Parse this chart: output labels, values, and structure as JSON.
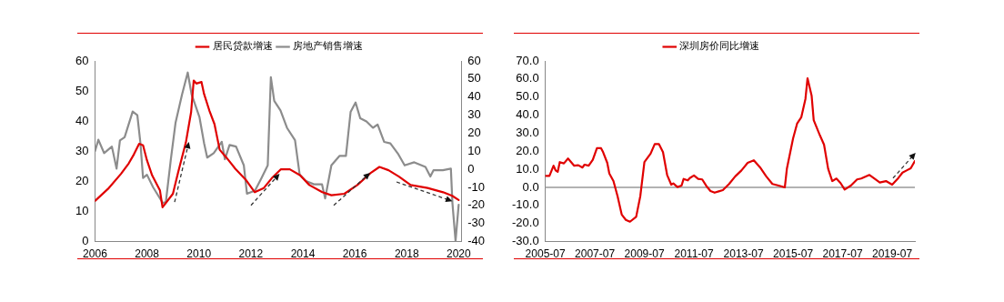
{
  "chart_data": [
    {
      "type": "line",
      "legend": "top",
      "grid": false,
      "marker": "none",
      "line_style": "solid",
      "xlim": [
        2006,
        2020.1
      ],
      "xticks": [
        2006,
        2008,
        2010,
        2012,
        2014,
        2016,
        2018,
        2020
      ],
      "ylim": [
        0,
        60
      ],
      "yticks": [
        0,
        10,
        20,
        30,
        40,
        50,
        60
      ],
      "y2lim": [
        -40,
        60
      ],
      "y2ticks": [
        -40,
        -30,
        -20,
        -10,
        0,
        10,
        20,
        30,
        40,
        50,
        60
      ],
      "series": [
        {
          "name": "居民贷款增速",
          "color": "#e00000",
          "x": [
            2006.0,
            2006.5,
            2007.0,
            2007.3,
            2007.5,
            2007.7,
            2007.85,
            2008.0,
            2008.2,
            2008.5,
            2008.6,
            2009.0,
            2009.2,
            2009.5,
            2009.7,
            2009.8,
            2009.9,
            2010.1,
            2010.2,
            2010.4,
            2010.6,
            2010.8,
            2011.05,
            2011.4,
            2011.8,
            2012.15,
            2012.5,
            2012.8,
            2013.15,
            2013.5,
            2013.9,
            2014.25,
            2014.75,
            2015.1,
            2015.6,
            2016.1,
            2016.6,
            2016.95,
            2017.3,
            2017.7,
            2018.15,
            2018.8,
            2019.4,
            2019.75,
            2020.0
          ],
          "values": [
            13.5,
            17.5,
            22.5,
            26,
            29,
            32.5,
            32,
            27,
            22,
            17,
            11.4,
            15.9,
            23,
            33,
            43,
            53.5,
            52.5,
            53,
            49,
            43.6,
            39,
            30.5,
            28,
            24.2,
            20.6,
            16.4,
            17.8,
            21,
            24,
            24,
            22,
            18.8,
            16.4,
            15.4,
            15.9,
            18.8,
            22.7,
            24.8,
            23.7,
            21.6,
            18.8,
            17.8,
            16.4,
            15.2,
            13.8
          ]
        },
        {
          "name": "房地产销售增速",
          "color": "#8c8c8c",
          "axis": "y2",
          "x": [
            2006.0,
            2006.13,
            2006.35,
            2006.65,
            2006.83,
            2006.96,
            2007.14,
            2007.45,
            2007.63,
            2007.75,
            2007.85,
            2008.0,
            2008.24,
            2008.61,
            2008.73,
            2008.92,
            2009.1,
            2009.35,
            2009.57,
            2009.72,
            2010.02,
            2010.2,
            2010.32,
            2010.57,
            2010.88,
            2011.0,
            2011.18,
            2011.43,
            2011.73,
            2011.85,
            2012.16,
            2012.41,
            2012.65,
            2012.77,
            2012.9,
            2013.14,
            2013.39,
            2013.7,
            2013.88,
            2014.12,
            2014.43,
            2014.74,
            2014.86,
            2015.1,
            2015.41,
            2015.66,
            2015.84,
            2016.03,
            2016.21,
            2016.45,
            2016.7,
            2016.88,
            2017.13,
            2017.37,
            2017.68,
            2017.92,
            2018.29,
            2018.72,
            2018.91,
            2019.03,
            2019.39,
            2019.7,
            2019.76,
            2019.88,
            2020.0
          ],
          "values": [
            10,
            16.4,
            9,
            12.6,
            0.4,
            16,
            17.8,
            32,
            30,
            14.4,
            -4.8,
            -3,
            -10,
            -18.7,
            -17.9,
            5.6,
            25.7,
            41.4,
            53.6,
            41.4,
            29,
            14.4,
            6.5,
            9,
            15.2,
            5.6,
            13.5,
            12.6,
            2.2,
            -13.5,
            -11.8,
            -4.8,
            2.2,
            51,
            37.9,
            32.6,
            23,
            16.1,
            -3,
            -6.5,
            -8.3,
            -8.3,
            -16.1,
            2.2,
            7.4,
            7.4,
            31.8,
            37,
            28.3,
            26.5,
            23,
            24.8,
            15.2,
            14.4,
            8.3,
            2.2,
            3.9,
            1.3,
            -4,
            -0.5,
            -0.5,
            0.4,
            -18.7,
            -39.7,
            -19.6
          ]
        }
      ]
    },
    {
      "type": "line",
      "legend": "top",
      "grid": false,
      "marker": "none",
      "line_style": "solid",
      "ref_lines": [
        {
          "axis": "y",
          "value": 0,
          "color": "#999999"
        }
      ],
      "xlim": [
        "2005-07",
        "2020-06"
      ],
      "xticks": [
        {
          "value": "2005-07",
          "label": "2005-07"
        },
        {
          "value": "2007-07",
          "label": "2007-07"
        },
        {
          "value": "2009-07",
          "label": "2009-07"
        },
        {
          "value": "2011-07",
          "label": "2011-07"
        },
        {
          "value": "2013-07",
          "label": "2013-07"
        },
        {
          "value": "2015-07",
          "label": "2015-07"
        },
        {
          "value": "2017-07",
          "label": "2017-07"
        },
        {
          "value": "2019-07",
          "label": "2019-07"
        }
      ],
      "ylim": [
        -30,
        70
      ],
      "yticks": [
        {
          "value": -30,
          "label": "-30.0"
        },
        {
          "value": -20,
          "label": "-20.0"
        },
        {
          "value": -10,
          "label": "-10.0"
        },
        {
          "value": 0,
          "label": "0.0"
        },
        {
          "value": 10,
          "label": "10.0"
        },
        {
          "value": 20,
          "label": "20.0"
        },
        {
          "value": 30,
          "label": "30.0"
        },
        {
          "value": 40,
          "label": "40.0"
        },
        {
          "value": 50,
          "label": "50.0"
        },
        {
          "value": 60,
          "label": "60.0"
        },
        {
          "value": 70,
          "label": "70.0"
        }
      ],
      "series": [
        {
          "name": "深圳房价同比增速",
          "color": "#e00000",
          "x": [
            "2005-07",
            "2005-09",
            "2005-11",
            "2005-12",
            "2006-01",
            "2006-02",
            "2006-04",
            "2006-06",
            "2006-09",
            "2006-11",
            "2007-01",
            "2007-02",
            "2007-04",
            "2007-06",
            "2007-08",
            "2007-10",
            "2007-11",
            "2008-01",
            "2008-02",
            "2008-04",
            "2008-06",
            "2008-08",
            "2008-10",
            "2008-12",
            "2009-03",
            "2009-05",
            "2009-07",
            "2009-10",
            "2009-12",
            "2010-02",
            "2010-04",
            "2010-06",
            "2010-08",
            "2010-09",
            "2010-11",
            "2011-01",
            "2011-02",
            "2011-04",
            "2011-05",
            "2011-07",
            "2011-09",
            "2011-11",
            "2012-01",
            "2012-03",
            "2012-05",
            "2012-07",
            "2012-09",
            "2012-12",
            "2013-03",
            "2013-06",
            "2013-09",
            "2013-12",
            "2014-03",
            "2014-06",
            "2014-09",
            "2014-12",
            "2015-03",
            "2015-04",
            "2015-07",
            "2015-09",
            "2015-11",
            "2016-01",
            "2016-02",
            "2016-04",
            "2016-05",
            "2016-08",
            "2016-10",
            "2016-12",
            "2017-02",
            "2017-04",
            "2017-06",
            "2017-08",
            "2017-11",
            "2018-02",
            "2018-04",
            "2018-08",
            "2018-10",
            "2019-01",
            "2019-04",
            "2019-07",
            "2019-10",
            "2019-12",
            "2020-02",
            "2020-04",
            "2020-06"
          ],
          "values": [
            6.4,
            6.4,
            12,
            9.4,
            8.6,
            14,
            13.3,
            16,
            12,
            12.3,
            11,
            12.6,
            12,
            15.3,
            21.7,
            21.7,
            19.5,
            13.6,
            7.7,
            3.5,
            -4.9,
            -15,
            -18,
            -19,
            -16.3,
            -4.9,
            14,
            18.7,
            24,
            24,
            19.5,
            6.9,
            1.5,
            2.2,
            0.2,
            1,
            4.7,
            3.9,
            5.2,
            6.6,
            4.7,
            4.4,
            0.8,
            -2,
            -2.9,
            -2.2,
            -1.5,
            1.9,
            6.1,
            9.4,
            13.6,
            15,
            11.1,
            6.1,
            1.9,
            1,
            0,
            10.3,
            27.1,
            35.5,
            38.9,
            49,
            60.4,
            50.7,
            37.2,
            28.8,
            23.7,
            10.3,
            3.5,
            4.9,
            2.4,
            -1.2,
            1,
            4.4,
            4.9,
            6.9,
            5.2,
            2.7,
            3.5,
            1.5,
            5.2,
            8.2,
            9.4,
            10.6,
            14.6
          ]
        }
      ]
    }
  ]
}
